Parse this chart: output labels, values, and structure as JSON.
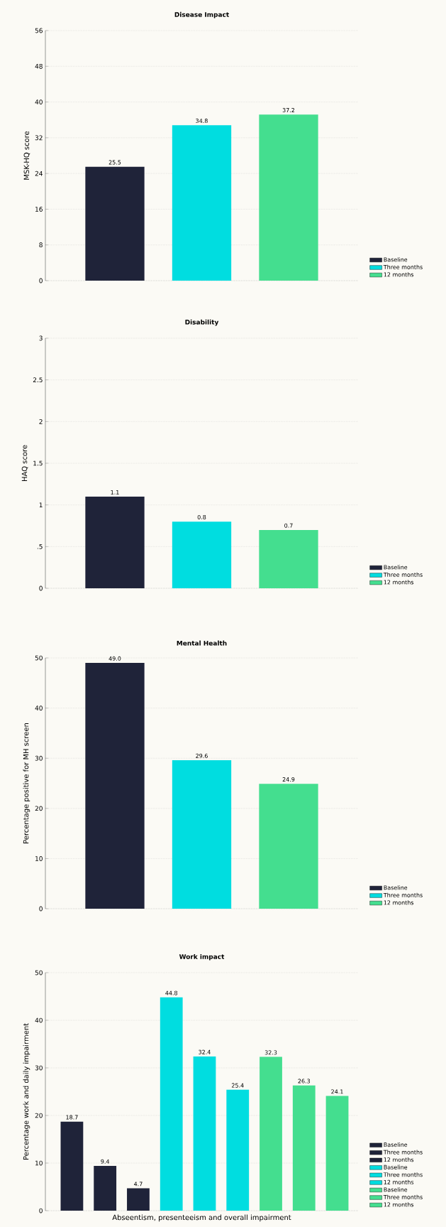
{
  "chart_data": [
    {
      "type": "bar",
      "title": "Disease Impact",
      "ylabel": "MSK-HQ score",
      "categories": [
        null,
        null,
        null
      ],
      "series": [
        {
          "name": "Baseline",
          "color": "#1f2339",
          "values": [
            25.5,
            null,
            null
          ],
          "value_labels": [
            "25.5",
            null,
            null
          ]
        },
        {
          "name": "Three months",
          "color": "#00dde0",
          "values": [
            null,
            34.8,
            null
          ],
          "value_labels": [
            null,
            "34.8",
            null
          ]
        },
        {
          "name": "12 months",
          "color": "#44de8f",
          "values": [
            null,
            null,
            37.2
          ],
          "value_labels": [
            null,
            null,
            "37.2"
          ]
        }
      ],
      "ylim": [
        0,
        56
      ],
      "yticks": [
        0,
        8,
        16,
        24,
        32,
        40,
        48,
        56
      ],
      "grid": "y",
      "legend": "right"
    },
    {
      "type": "bar",
      "title": "Disability",
      "ylabel": "HAQ score",
      "categories": [
        null,
        null,
        null
      ],
      "series": [
        {
          "name": "Baseline",
          "color": "#1f2339",
          "values": [
            1.1,
            null,
            null
          ],
          "value_labels": [
            "1.1",
            null,
            null
          ]
        },
        {
          "name": "Three months",
          "color": "#00dde0",
          "values": [
            null,
            0.8,
            null
          ],
          "value_labels": [
            null,
            "0.8",
            null
          ]
        },
        {
          "name": "12 months",
          "color": "#44de8f",
          "values": [
            null,
            null,
            0.7
          ],
          "value_labels": [
            null,
            null,
            "0.7"
          ]
        }
      ],
      "ylim": [
        0,
        3
      ],
      "yticks": [
        0,
        {
          "value": 0.5,
          "label": ".5"
        },
        1,
        1.5,
        2,
        2.5,
        3
      ],
      "grid": "y",
      "legend": "right"
    },
    {
      "type": "bar",
      "title": "Mental Health",
      "ylabel": "Percentage positive for MH screen",
      "categories": [
        null,
        null,
        null
      ],
      "series": [
        {
          "name": "Baseline",
          "color": "#1f2339",
          "values": [
            49.0,
            null,
            null
          ],
          "value_labels": [
            "49.0",
            null,
            null
          ]
        },
        {
          "name": "Three months",
          "color": "#00dde0",
          "values": [
            null,
            29.6,
            null
          ],
          "value_labels": [
            null,
            "29.6",
            null
          ]
        },
        {
          "name": "12 months",
          "color": "#44de8f",
          "values": [
            null,
            null,
            24.9
          ],
          "value_labels": [
            null,
            null,
            "24.9"
          ]
        }
      ],
      "ylim": [
        0,
        50
      ],
      "yticks": [
        0,
        10,
        20,
        30,
        40,
        50
      ],
      "grid": "y",
      "legend": "right"
    },
    {
      "type": "bar",
      "title": "Work impact",
      "ylabel": "Percentage work and daily impairment",
      "xlabel": "Abseentism, presenteeism and overall impairment",
      "categories": [
        null,
        null,
        null,
        null,
        null,
        null,
        null,
        null,
        null
      ],
      "series": [
        {
          "name": "Baseline",
          "color": "#1f2339",
          "values": [
            18.7,
            null,
            null,
            null,
            null,
            null,
            null,
            null,
            null
          ],
          "value_labels": [
            "18.7",
            null,
            null,
            null,
            null,
            null,
            null,
            null,
            null
          ]
        },
        {
          "name": "Three months",
          "color": "#1f2339",
          "values": [
            null,
            9.4,
            null,
            null,
            null,
            null,
            null,
            null,
            null
          ],
          "value_labels": [
            null,
            "9.4",
            null,
            null,
            null,
            null,
            null,
            null,
            null
          ]
        },
        {
          "name": "12 months",
          "color": "#1f2339",
          "values": [
            null,
            null,
            4.7,
            null,
            null,
            null,
            null,
            null,
            null
          ],
          "value_labels": [
            null,
            null,
            "4.7",
            null,
            null,
            null,
            null,
            null,
            null
          ]
        },
        {
          "name": "Baseline",
          "color": "#00dde0",
          "values": [
            null,
            null,
            null,
            44.8,
            null,
            null,
            null,
            null,
            null
          ],
          "value_labels": [
            null,
            null,
            null,
            "44.8",
            null,
            null,
            null,
            null,
            null
          ]
        },
        {
          "name": "Three months",
          "color": "#00dde0",
          "values": [
            null,
            null,
            null,
            null,
            32.4,
            null,
            null,
            null,
            null
          ],
          "value_labels": [
            null,
            null,
            null,
            null,
            "32.4",
            null,
            null,
            null,
            null
          ]
        },
        {
          "name": "12 months",
          "color": "#00dde0",
          "values": [
            null,
            null,
            null,
            null,
            null,
            25.4,
            null,
            null,
            null
          ],
          "value_labels": [
            null,
            null,
            null,
            null,
            null,
            "25.4",
            null,
            null,
            null
          ]
        },
        {
          "name": "Baseline",
          "color": "#44de8f",
          "values": [
            null,
            null,
            null,
            null,
            null,
            null,
            32.3,
            null,
            null
          ],
          "value_labels": [
            null,
            null,
            null,
            null,
            null,
            null,
            "32.3",
            null,
            null
          ]
        },
        {
          "name": "Three months",
          "color": "#44de8f",
          "values": [
            null,
            null,
            null,
            null,
            null,
            null,
            null,
            26.3,
            null
          ],
          "value_labels": [
            null,
            null,
            null,
            null,
            null,
            null,
            null,
            "26.3",
            null
          ]
        },
        {
          "name": "12 months",
          "color": "#44de8f",
          "values": [
            null,
            null,
            null,
            null,
            null,
            null,
            null,
            null,
            24.1
          ],
          "value_labels": [
            null,
            null,
            null,
            null,
            null,
            null,
            null,
            null,
            "24.1"
          ]
        }
      ],
      "ylim": [
        0,
        50
      ],
      "yticks": [
        0,
        10,
        20,
        30,
        40,
        50
      ],
      "grid": "y",
      "legend": "right"
    }
  ]
}
